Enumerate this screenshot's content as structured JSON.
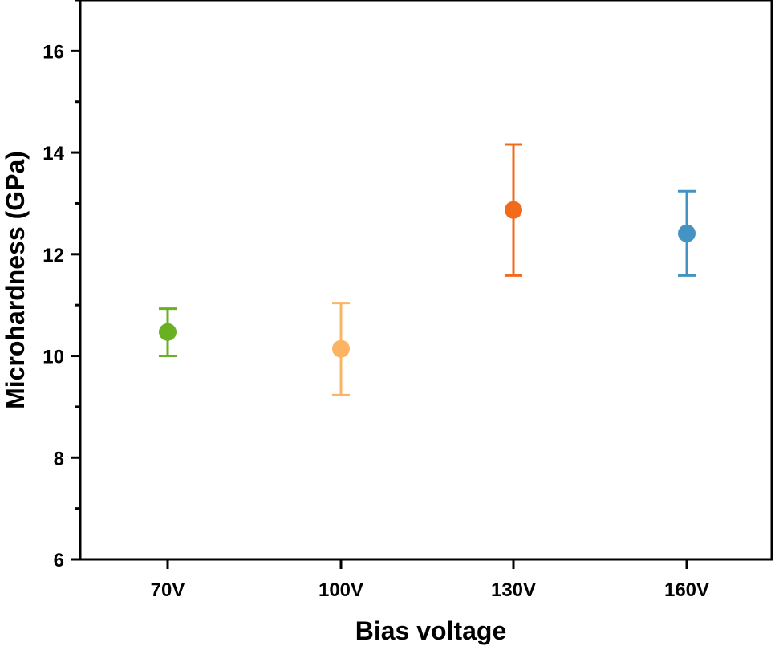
{
  "chart_data": {
    "type": "scatter",
    "title": "",
    "xlabel": "Bias voltage",
    "ylabel": "Microhardness (GPa)",
    "categories": [
      "70V",
      "100V",
      "130V",
      "160V"
    ],
    "values": [
      10.47,
      10.14,
      12.87,
      12.41
    ],
    "error_upper": [
      10.93,
      11.04,
      14.16,
      13.24
    ],
    "error_lower": [
      10.0,
      9.23,
      11.58,
      11.58
    ],
    "colors": [
      "#6ab023",
      "#fdb462",
      "#f26b1d",
      "#4393c3"
    ],
    "ylim": [
      6,
      17
    ],
    "yticks": [
      "6",
      "8",
      "10",
      "12",
      "14",
      "16"
    ],
    "grid": false,
    "legend": "none"
  }
}
